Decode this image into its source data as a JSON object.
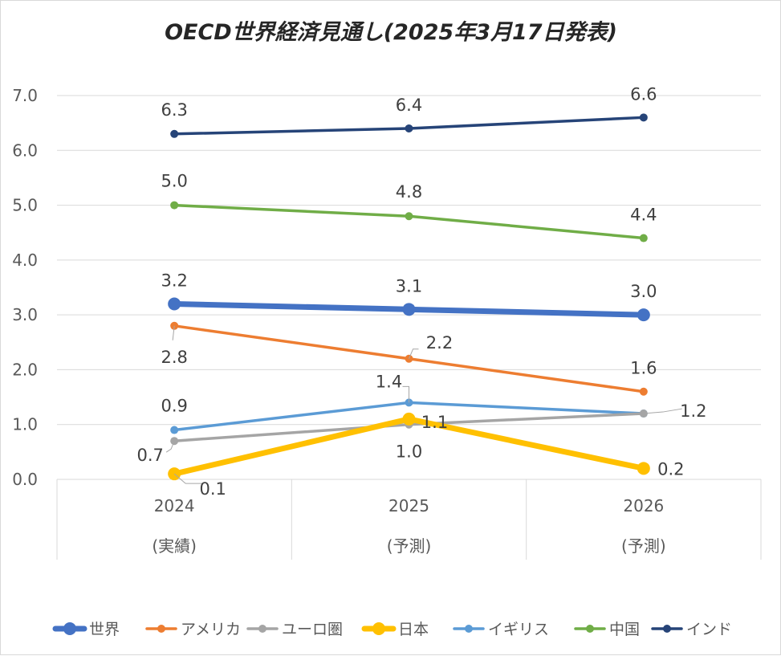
{
  "chart_data": {
    "type": "line",
    "title": "OECD世界経済見通し(2025年3月17日発表)",
    "categories": [
      "2024",
      "2025",
      "2026"
    ],
    "category_sublabels": [
      "(実績)",
      "(予測)",
      "(予測)"
    ],
    "y_ticks": [
      "0.0",
      "1.0",
      "2.0",
      "3.0",
      "4.0",
      "5.0",
      "6.0",
      "7.0"
    ],
    "ylim": [
      0,
      7
    ],
    "grid": "horizontal",
    "legend_position": "bottom",
    "series": [
      {
        "name": "世界",
        "values": [
          3.2,
          3.1,
          3.0
        ],
        "labels": [
          "3.2",
          "3.1",
          "3.0"
        ],
        "color": "#4472C4"
      },
      {
        "name": "アメリカ",
        "values": [
          2.8,
          2.2,
          1.6
        ],
        "labels": [
          "2.8",
          "2.2",
          "1.6"
        ],
        "color": "#ED7D31"
      },
      {
        "name": "ユーロ圏",
        "values": [
          0.7,
          1.0,
          1.2
        ],
        "labels": [
          "0.7",
          "1.0",
          "1.2"
        ],
        "color": "#A5A5A5"
      },
      {
        "name": "日本",
        "values": [
          0.1,
          1.1,
          0.2
        ],
        "labels": [
          "0.1",
          "1.1",
          "0.2"
        ],
        "color": "#FFC000"
      },
      {
        "name": "イギリス",
        "values": [
          0.9,
          1.4,
          1.2
        ],
        "labels": [
          "0.9",
          "1.4",
          ""
        ],
        "color": "#5B9BD5"
      },
      {
        "name": "中国",
        "values": [
          5.0,
          4.8,
          4.4
        ],
        "labels": [
          "5.0",
          "4.8",
          "4.4"
        ],
        "color": "#70AD47"
      },
      {
        "name": "インド",
        "values": [
          6.3,
          6.4,
          6.6
        ],
        "labels": [
          "6.3",
          "6.4",
          "6.6"
        ],
        "color": "#264478"
      }
    ]
  }
}
